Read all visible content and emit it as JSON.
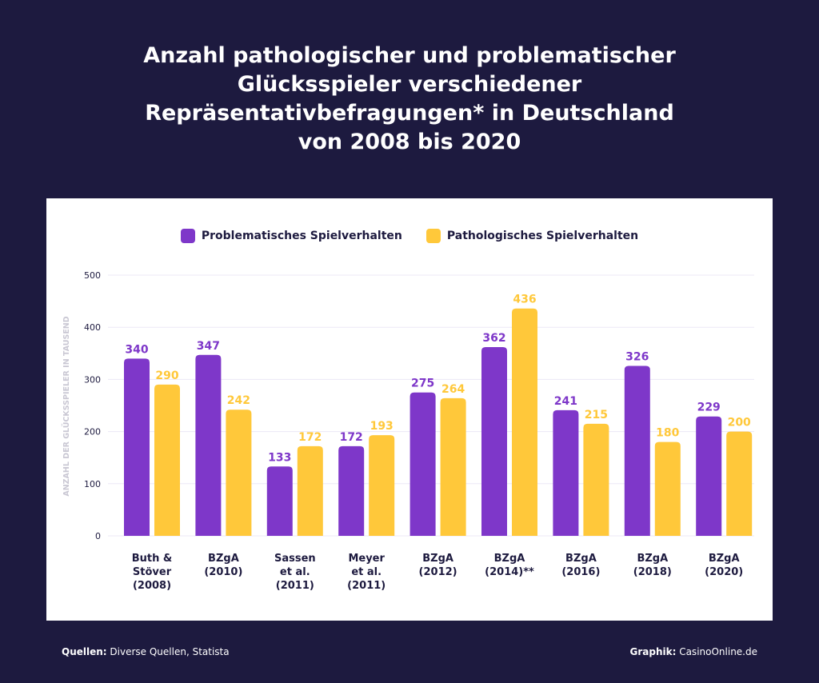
{
  "chart_data": {
    "type": "bar",
    "title": "Anzahl pathologischer und problematischer\nGlücksspieler verschiedener\nRepräsentativbefragungen* in Deutschland\nvon 2008 bis 2020",
    "ylabel": "ANZAHL DER GLÜCKSSPIELER IN TAUSEND",
    "xlabel": "",
    "ylim": [
      0,
      500
    ],
    "yticks": [
      0,
      100,
      200,
      300,
      400,
      500
    ],
    "grid": true,
    "legend_position": "top",
    "categories": [
      "Buth &\nStöver\n(2008)",
      "BZgA\n(2010)",
      "Sassen\net al.\n(2011)",
      "Meyer\net al.\n(2011)",
      "BZgA\n(2012)",
      "BZgA\n(2014)**",
      "BZgA\n(2016)",
      "BZgA\n(2018)",
      "BZgA\n(2020)"
    ],
    "series": [
      {
        "name": "Problematisches Spielverhalten",
        "color": "#7e37c9",
        "values": [
          340,
          347,
          133,
          172,
          275,
          362,
          241,
          326,
          229
        ]
      },
      {
        "name": "Pathologisches Spielverhalten",
        "color": "#ffc83a",
        "values": [
          290,
          242,
          172,
          193,
          264,
          436,
          215,
          180,
          200
        ]
      }
    ]
  },
  "footer": {
    "source_label": "Quellen:",
    "source": "Diverse Quellen, Statista",
    "credit_label": "Graphik:",
    "credit": "CasinoOnline.de"
  }
}
